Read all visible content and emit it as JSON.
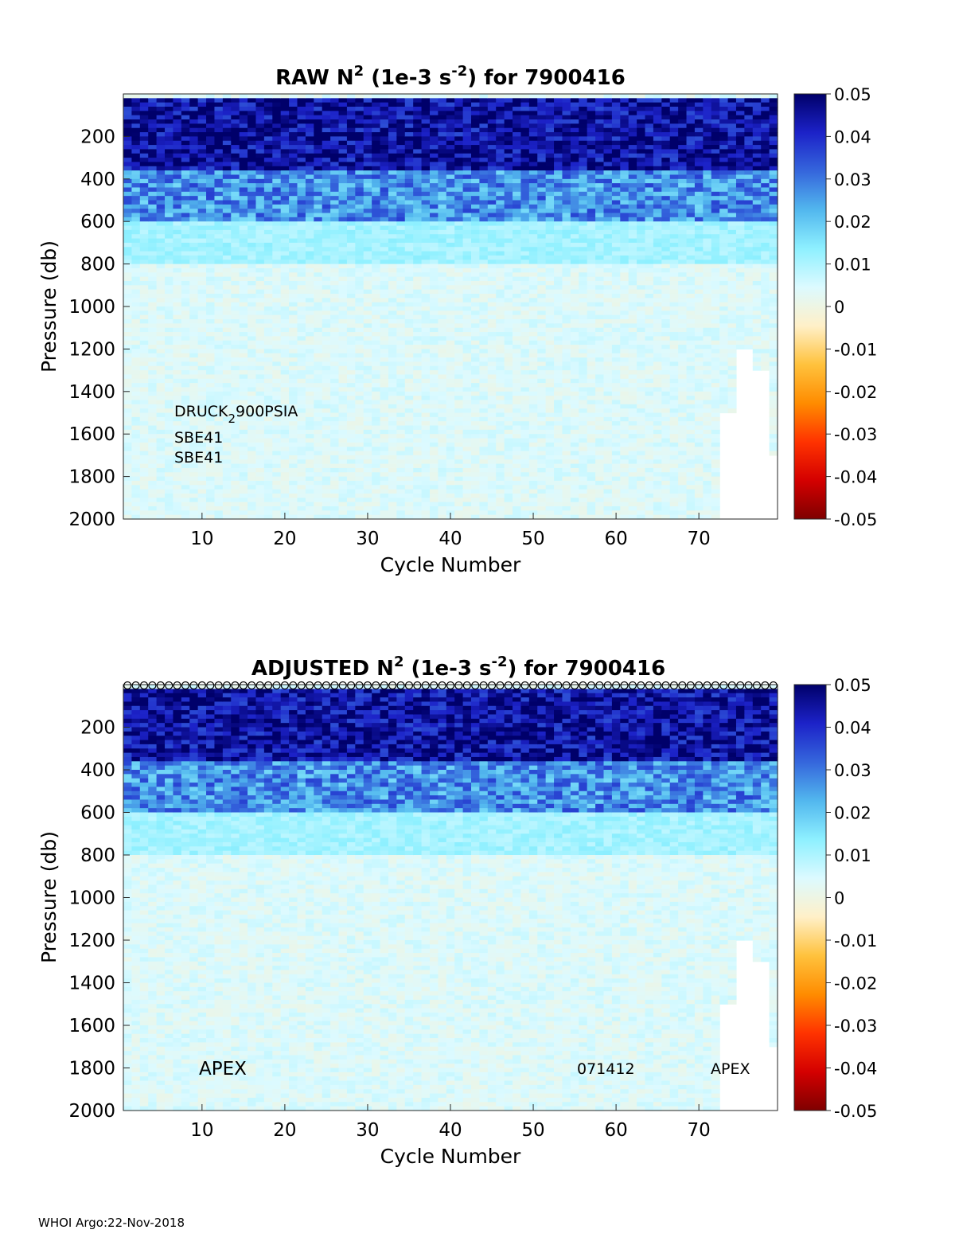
{
  "footer": "WHOI Argo:22-Nov-2018",
  "colorbar": {
    "ticks": [
      "0.05",
      "0.04",
      "0.03",
      "0.02",
      "0.01",
      "0",
      "-0.01",
      "-0.02",
      "-0.03",
      "-0.04",
      "-0.05"
    ],
    "range": [
      -0.05,
      0.05
    ],
    "stops": [
      "#7f0000",
      "#d40000",
      "#ff3300",
      "#ff8c00",
      "#ffc23d",
      "#fff0c8",
      "#dcfaff",
      "#8ef0ff",
      "#52b7ee",
      "#3566dc",
      "#1c22c8",
      "#00006a"
    ]
  },
  "chart_data": [
    {
      "type": "heatmap",
      "title": {
        "prefix": "RAW N",
        "sup1": "2",
        "mid": " (1e-3 s",
        "sup2": "-2",
        "suffix": ") for 7900416"
      },
      "xlabel": "Cycle Number",
      "ylabel": "Pressure (db)",
      "xlim": [
        1,
        79
      ],
      "ylim": [
        2000,
        0
      ],
      "yreversed": true,
      "xticks": [
        "10",
        "20",
        "30",
        "40",
        "50",
        "60",
        "70"
      ],
      "yticks": [
        "200",
        "400",
        "600",
        "800",
        "1000",
        "1200",
        "1400",
        "1600",
        "1800",
        "2000"
      ],
      "annotations": [
        {
          "base": "DRUCK",
          "sub": "2",
          "rest": "900PSIA"
        },
        {
          "base": "SBE41",
          "sub": "",
          "rest": ""
        },
        {
          "base": "SBE41",
          "sub": "",
          "rest": ""
        }
      ],
      "value_bands": [
        {
          "pressure": [
            0,
            20
          ],
          "value": 0.004
        },
        {
          "pressure": [
            20,
            350
          ],
          "value": 0.045
        },
        {
          "pressure": [
            350,
            600
          ],
          "value": 0.027
        },
        {
          "pressure": [
            600,
            800
          ],
          "value": 0.011
        },
        {
          "pressure": [
            800,
            2000
          ],
          "value": 0.004
        }
      ],
      "max_pressure_late_cycles": [
        {
          "cycles": [
            73,
            74
          ],
          "pressure": 1500
        },
        {
          "cycles": [
            75,
            76
          ],
          "pressure": 1200
        },
        {
          "cycles": [
            77,
            78
          ],
          "pressure": 1300
        },
        {
          "cycles": [
            79,
            79
          ],
          "pressure": 1700
        }
      ],
      "markers": false
    },
    {
      "type": "heatmap",
      "title": {
        "prefix": "ADJUSTED N",
        "sup1": "2",
        "mid": " (1e-3 s",
        "sup2": "-2",
        "suffix": ") for 7900416"
      },
      "xlabel": "Cycle Number",
      "ylabel": "Pressure (db)",
      "xlim": [
        1,
        79
      ],
      "ylim": [
        2000,
        0
      ],
      "yreversed": true,
      "xticks": [
        "10",
        "20",
        "30",
        "40",
        "50",
        "60",
        "70"
      ],
      "yticks": [
        "200",
        "400",
        "600",
        "800",
        "1000",
        "1200",
        "1400",
        "1600",
        "1800",
        "2000"
      ],
      "bottom_labels": {
        "left": "APEX",
        "middle": "071412",
        "right": "APEX"
      },
      "value_bands": [
        {
          "pressure": [
            0,
            20
          ],
          "value": 0.004
        },
        {
          "pressure": [
            20,
            350
          ],
          "value": 0.045
        },
        {
          "pressure": [
            350,
            600
          ],
          "value": 0.027
        },
        {
          "pressure": [
            600,
            800
          ],
          "value": 0.011
        },
        {
          "pressure": [
            800,
            2000
          ],
          "value": 0.004
        }
      ],
      "max_pressure_late_cycles": [
        {
          "cycles": [
            73,
            74
          ],
          "pressure": 1500
        },
        {
          "cycles": [
            75,
            76
          ],
          "pressure": 1200
        },
        {
          "cycles": [
            77,
            78
          ],
          "pressure": 1300
        },
        {
          "cycles": [
            79,
            79
          ],
          "pressure": 1700
        }
      ],
      "markers": true
    }
  ]
}
